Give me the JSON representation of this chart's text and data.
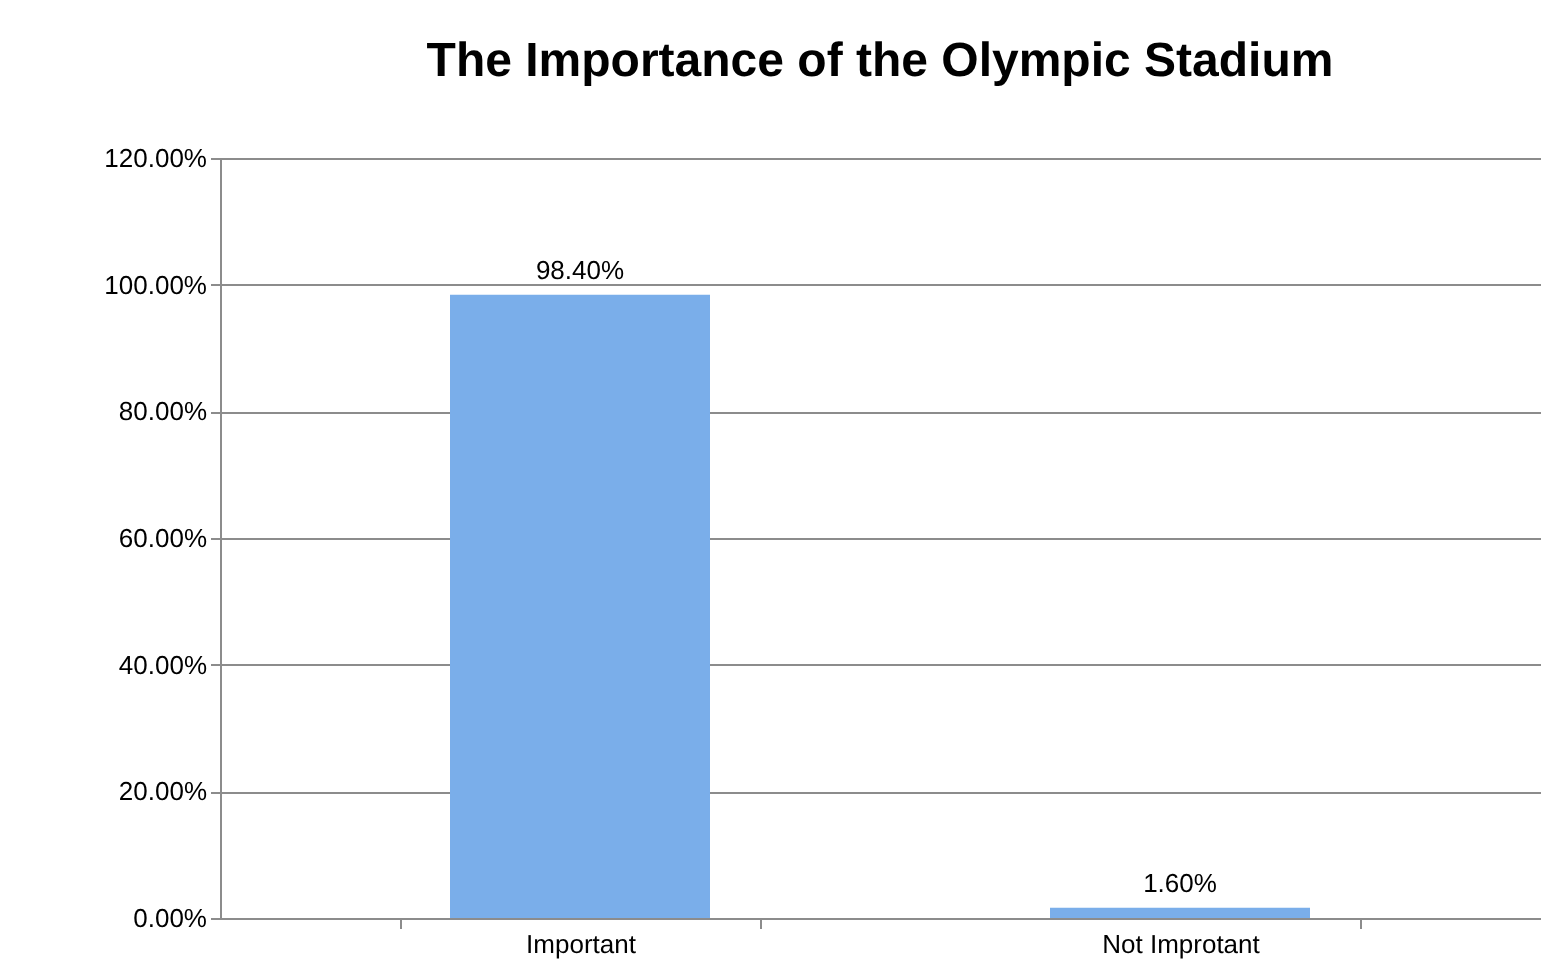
{
  "chart_data": {
    "type": "bar",
    "title": "The Importance of the Olympic Stadium",
    "categories": [
      "Important",
      "Not Improtant"
    ],
    "values": [
      98.4,
      1.6
    ],
    "value_labels": [
      "98.40%",
      "1.60%"
    ],
    "color": "#7aaeea",
    "ylim": [
      0,
      120
    ],
    "yticks": [
      {
        "value": 0,
        "label": "0.00%"
      },
      {
        "value": 20,
        "label": "20.00%"
      },
      {
        "value": 40,
        "label": "40.00%"
      },
      {
        "value": 60,
        "label": "60.00%"
      },
      {
        "value": 80,
        "label": "80.00%"
      },
      {
        "value": 100,
        "label": "100.00%"
      },
      {
        "value": 120,
        "label": "120.00%"
      }
    ],
    "grid": "y"
  }
}
